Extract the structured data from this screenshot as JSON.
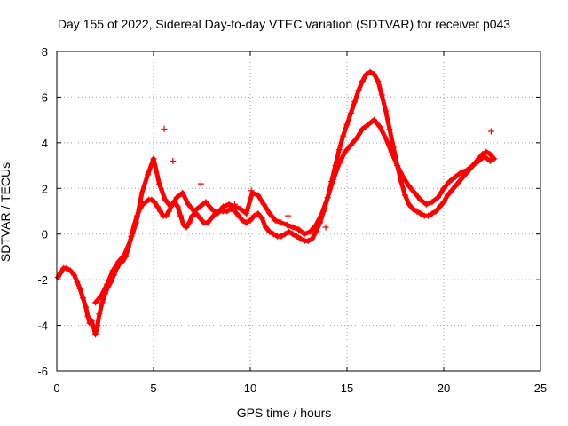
{
  "chart_data": {
    "type": "scatter",
    "title": "Day 155 of 2022, Sidereal Day-to-day VTEC variation (SDTVAR) for receiver p043",
    "xlabel": "GPS time / hours",
    "ylabel": "SDTVAR / TECUs",
    "xlim": [
      0,
      25
    ],
    "ylim": [
      -6,
      8
    ],
    "xticks": [
      "0",
      "5",
      "10",
      "15",
      "20",
      "25"
    ],
    "yticks": [
      "-6",
      "-4",
      "-2",
      "0",
      "2",
      "4",
      "6",
      "8"
    ],
    "grid": true,
    "marker": "+",
    "color": "#ff0000",
    "series": [
      {
        "name": "SDTVAR",
        "x": [
          0.05,
          0.2,
          0.35,
          0.5,
          0.7,
          0.9,
          1.05,
          1.2,
          1.35,
          1.5,
          1.6,
          1.7,
          1.8,
          1.9,
          2.0,
          2.1,
          2.2,
          2.35,
          2.5,
          2.65,
          2.8,
          2.95,
          3.1,
          3.25,
          3.4,
          3.55,
          3.7,
          3.85,
          4.0,
          4.15,
          4.3,
          4.45,
          4.6,
          4.75,
          4.9,
          5.05,
          5.2,
          5.35,
          5.5,
          5.65,
          5.8,
          5.95,
          6.1,
          6.25,
          6.4,
          6.55,
          6.7,
          6.85,
          7.0,
          7.2,
          7.4,
          7.6,
          7.8,
          8.0,
          8.2,
          8.4,
          8.6,
          8.8,
          9.0,
          9.2,
          9.4,
          9.6,
          9.8,
          10.0,
          10.2,
          10.4,
          10.6,
          10.8,
          11.0,
          11.2,
          11.4,
          11.6,
          11.8,
          12.0,
          12.2,
          12.4,
          12.6,
          12.8,
          13.0,
          13.2,
          13.4,
          13.6,
          13.8,
          14.0,
          14.2,
          14.4,
          14.6,
          14.8,
          15.0,
          15.2,
          15.4,
          15.6,
          15.8,
          16.0,
          16.2,
          16.4,
          16.6,
          16.8,
          17.0,
          17.2,
          17.4,
          17.6,
          17.8,
          18.0,
          18.2,
          18.4,
          18.6,
          18.8,
          19.0,
          19.2,
          19.4,
          19.6,
          19.8,
          20.0,
          20.2,
          20.4,
          20.6,
          20.8,
          21.0,
          21.2,
          21.4,
          21.6,
          21.8,
          22.0,
          22.2,
          22.4,
          22.6
        ],
        "y": [
          -1.9,
          -1.7,
          -1.5,
          -1.5,
          -1.6,
          -1.8,
          -2.1,
          -2.4,
          -2.8,
          -3.2,
          -3.6,
          -3.9,
          -3.8,
          -4.1,
          -4.4,
          -4.0,
          -3.5,
          -3.0,
          -2.6,
          -2.3,
          -2.1,
          -1.8,
          -1.5,
          -1.3,
          -1.2,
          -1.0,
          -0.6,
          -0.1,
          0.4,
          0.8,
          1.1,
          1.3,
          1.4,
          1.5,
          1.5,
          1.4,
          1.2,
          1.0,
          0.8,
          0.8,
          1.0,
          1.3,
          1.4,
          1.2,
          0.8,
          0.4,
          0.3,
          0.5,
          0.8,
          0.9,
          0.7,
          0.5,
          0.5,
          0.7,
          0.9,
          1.0,
          1.0,
          1.0,
          1.1,
          1.0,
          0.8,
          0.6,
          0.5,
          0.6,
          0.8,
          0.9,
          0.7,
          0.3,
          0.1,
          0.0,
          -0.1,
          -0.1,
          0.0,
          0.1,
          0.0,
          -0.1,
          -0.2,
          -0.3,
          -0.3,
          -0.2,
          0.1,
          0.5,
          1.0,
          1.6,
          2.3,
          3.0,
          3.7,
          4.3,
          4.8,
          5.3,
          5.8,
          6.3,
          6.7,
          7.0,
          7.1,
          7.0,
          6.7,
          6.1,
          5.4,
          4.6,
          3.8,
          3.0,
          2.3,
          1.7,
          1.3,
          1.1,
          1.0,
          0.9,
          0.8,
          0.8,
          0.9,
          1.0,
          1.2,
          1.4,
          1.7,
          1.9,
          2.1,
          2.3,
          2.5,
          2.7,
          2.9,
          3.1,
          3.3,
          3.5,
          3.6,
          3.5,
          3.3
        ],
        "x2": [
          2.0,
          2.3,
          2.6,
          2.9,
          3.2,
          3.5,
          3.8,
          4.1,
          4.4,
          4.7,
          5.0,
          5.3,
          5.6,
          5.9,
          6.2,
          6.5,
          6.8,
          7.1,
          7.4,
          7.7,
          8.0,
          8.3,
          8.6,
          8.9,
          9.2,
          9.5,
          9.8,
          10.1,
          10.4,
          10.7,
          11.0,
          11.3,
          11.6,
          11.9,
          12.2,
          12.5,
          12.8,
          13.1,
          13.4,
          13.7,
          14.0,
          14.3,
          14.6,
          14.9,
          15.2,
          15.5,
          15.8,
          16.1,
          16.4,
          16.7,
          17.0,
          17.3,
          17.6,
          17.9,
          18.2,
          18.5,
          18.8,
          19.1,
          19.4,
          19.7,
          20.0,
          20.3,
          20.6,
          20.9,
          21.2,
          21.5,
          21.8,
          22.1,
          22.4
        ],
        "y2": [
          -3.0,
          -2.7,
          -2.2,
          -1.6,
          -1.2,
          -0.9,
          -0.3,
          0.5,
          1.8,
          2.6,
          3.3,
          2.2,
          1.5,
          1.2,
          1.6,
          1.8,
          1.3,
          1.0,
          1.2,
          1.4,
          1.1,
          0.9,
          1.2,
          1.3,
          1.2,
          1.1,
          0.9,
          1.8,
          1.7,
          1.3,
          0.9,
          0.6,
          0.5,
          0.4,
          0.3,
          0.2,
          0.0,
          0.1,
          0.4,
          0.9,
          1.6,
          2.4,
          3.1,
          3.6,
          3.9,
          4.2,
          4.6,
          4.8,
          5.0,
          4.7,
          4.2,
          3.6,
          3.0,
          2.5,
          2.1,
          1.8,
          1.5,
          1.3,
          1.4,
          1.6,
          2.0,
          2.3,
          2.5,
          2.7,
          2.8,
          3.0,
          3.2,
          3.4,
          3.2
        ],
        "outliers_x": [
          5.55,
          22.45,
          6.0,
          7.45,
          9.2,
          10.05,
          11.95,
          13.9
        ],
        "outliers_y": [
          4.6,
          4.5,
          3.2,
          2.2,
          1.3,
          1.9,
          0.8,
          0.3
        ]
      }
    ]
  }
}
